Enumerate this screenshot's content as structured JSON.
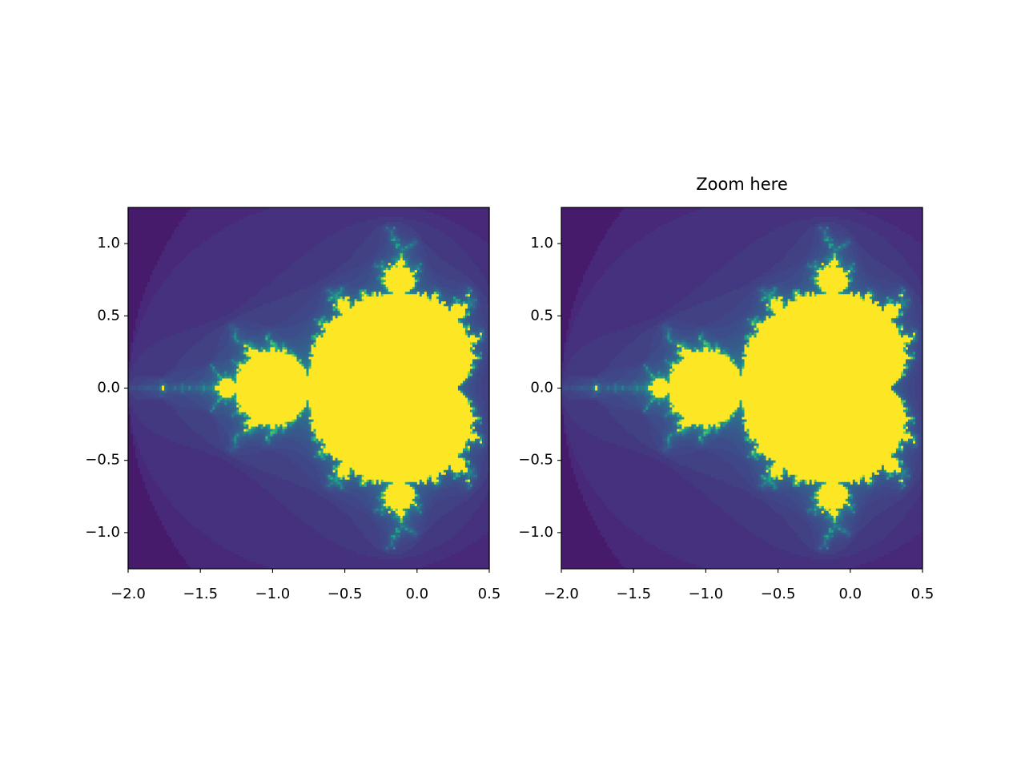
{
  "chart_data": [
    {
      "type": "image",
      "colormap": "viridis",
      "xlim": [
        -2.0,
        0.5
      ],
      "ylim": [
        -1.25,
        1.25
      ],
      "xticks": [
        {
          "value": -2.0,
          "label": "−2.0"
        },
        {
          "value": -1.5,
          "label": "−1.5"
        },
        {
          "value": -1.0,
          "label": "−1.0"
        },
        {
          "value": -0.5,
          "label": "−0.5"
        },
        {
          "value": 0,
          "label": "0.0"
        },
        0.5
      ],
      "yticks": [
        {
          "value": -1.0,
          "label": "−1.0"
        },
        {
          "value": -0.5,
          "label": "−0.5"
        },
        {
          "value": 0,
          "label": "0.0"
        },
        0.5,
        {
          "value": 1.0,
          "label": "1.0"
        }
      ]
    },
    {
      "type": "image",
      "colormap": "viridis",
      "title": "Zoom here",
      "xlim": [
        -2.0,
        0.5
      ],
      "ylim": [
        -1.25,
        1.25
      ],
      "xticks": [
        {
          "value": -2.0,
          "label": "−2.0"
        },
        {
          "value": -1.5,
          "label": "−1.5"
        },
        {
          "value": -1.0,
          "label": "−1.0"
        },
        {
          "value": -0.5,
          "label": "−0.5"
        },
        {
          "value": 0,
          "label": "0.0"
        },
        0.5
      ],
      "yticks": [
        {
          "value": -1.0,
          "label": "−1.0"
        },
        {
          "value": -0.5,
          "label": "−0.5"
        },
        {
          "value": 0,
          "label": "0.0"
        },
        0.5,
        {
          "value": 1.0,
          "label": "1.0"
        }
      ]
    }
  ]
}
